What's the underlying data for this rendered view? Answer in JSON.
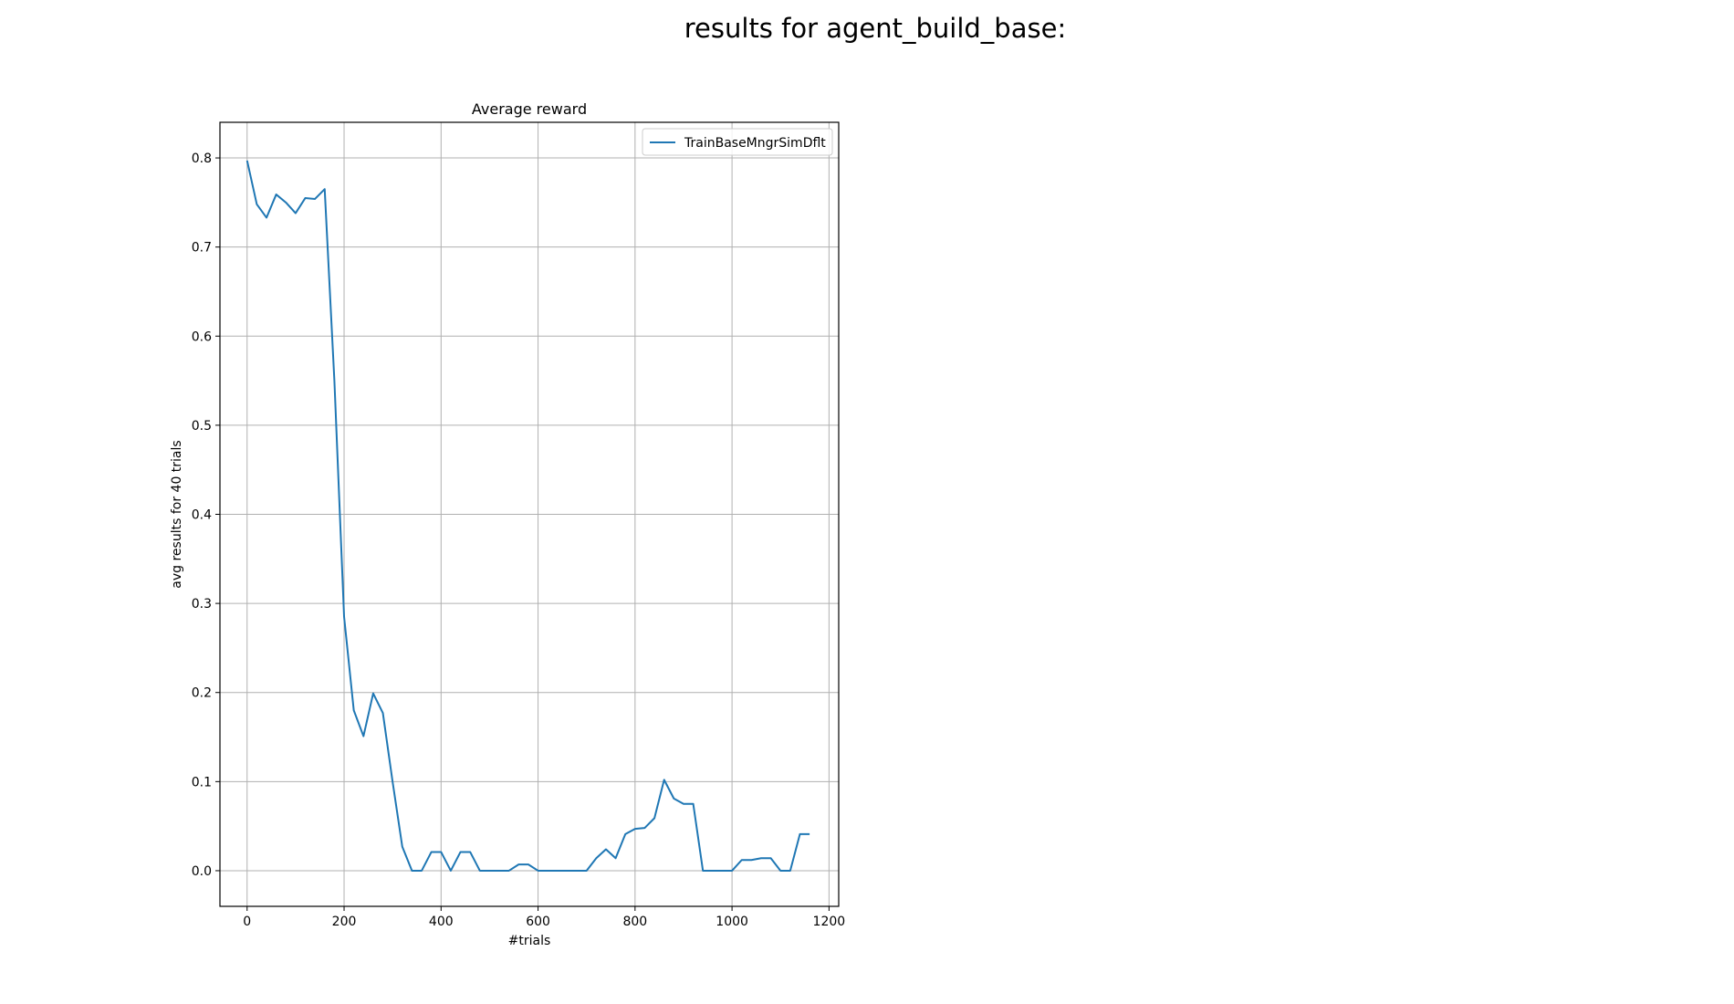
{
  "figure_title": "results for agent_build_base:",
  "chart_data": {
    "type": "line",
    "title": "Average reward",
    "xlabel": "#trials",
    "ylabel": "avg results for 40 trials",
    "xlim": [
      -56,
      1220
    ],
    "ylim": [
      -0.04,
      0.84
    ],
    "xticks": [
      0,
      200,
      400,
      600,
      800,
      1000,
      1200
    ],
    "yticks": [
      0.0,
      0.1,
      0.2,
      0.3,
      0.4,
      0.5,
      0.6,
      0.7,
      0.8
    ],
    "grid": true,
    "legend_position": "top-right",
    "series": [
      {
        "name": "TrainBaseMngrSimDflt",
        "color": "#1f77b4",
        "x": [
          0,
          20,
          40,
          60,
          80,
          100,
          120,
          140,
          160,
          180,
          200,
          220,
          240,
          260,
          280,
          300,
          320,
          340,
          360,
          380,
          400,
          420,
          440,
          460,
          480,
          500,
          520,
          540,
          560,
          580,
          600,
          620,
          640,
          660,
          680,
          700,
          720,
          740,
          760,
          780,
          800,
          820,
          840,
          860,
          880,
          900,
          920,
          940,
          960,
          980,
          1000,
          1020,
          1040,
          1060,
          1080,
          1100,
          1120,
          1140,
          1160
        ],
        "y": [
          0.797,
          0.748,
          0.733,
          0.759,
          0.75,
          0.738,
          0.755,
          0.754,
          0.765,
          0.55,
          0.285,
          0.18,
          0.151,
          0.199,
          0.177,
          0.1,
          0.027,
          0.0,
          0.0,
          0.021,
          0.021,
          0.0,
          0.021,
          0.021,
          0.0,
          0.0,
          0.0,
          0.0,
          0.007,
          0.007,
          0.0,
          0.0,
          0.0,
          0.0,
          0.0,
          0.0,
          0.014,
          0.024,
          0.014,
          0.041,
          0.047,
          0.048,
          0.059,
          0.102,
          0.081,
          0.075,
          0.075,
          0.0,
          0.0,
          0.0,
          0.0,
          0.012,
          0.012,
          0.014,
          0.014,
          0.0,
          0.0,
          0.041,
          0.041
        ]
      }
    ]
  }
}
